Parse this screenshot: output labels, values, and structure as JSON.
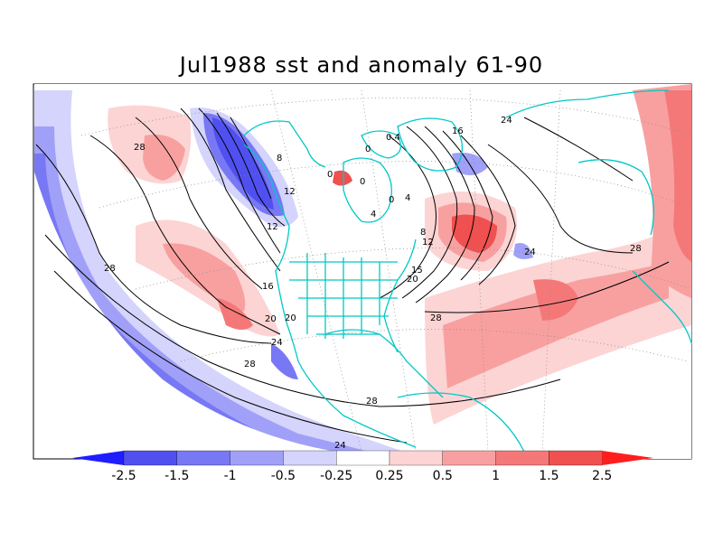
{
  "title": "Jul1988 sst and anomaly 61-90",
  "colorbar": {
    "ticks": [
      "-2.5",
      "-1.5",
      "-1",
      "-0.5",
      "-0.25",
      "0.25",
      "0.5",
      "1",
      "1.5",
      "2.5"
    ],
    "colors": [
      "#1e1eff",
      "#5050f0",
      "#7878f5",
      "#a0a0f8",
      "#d4d4fc",
      "#ffffff",
      "#fcd4d4",
      "#f8a0a0",
      "#f57878",
      "#f05050",
      "#ff1e1e"
    ]
  },
  "contour_labels": [
    "28",
    "28",
    "28",
    "28",
    "28",
    "28",
    "24",
    "24",
    "24",
    "20",
    "20",
    "16",
    "16",
    "12",
    "12",
    "12",
    "8",
    "8",
    "4",
    "4",
    "0",
    "0",
    "0",
    "0",
    "0.4",
    "15",
    "20",
    "24"
  ],
  "map": {
    "projection": "polar stereographic",
    "coast_color": "#00c8c8",
    "contour_field": "sst",
    "shaded_field": "anomaly"
  }
}
